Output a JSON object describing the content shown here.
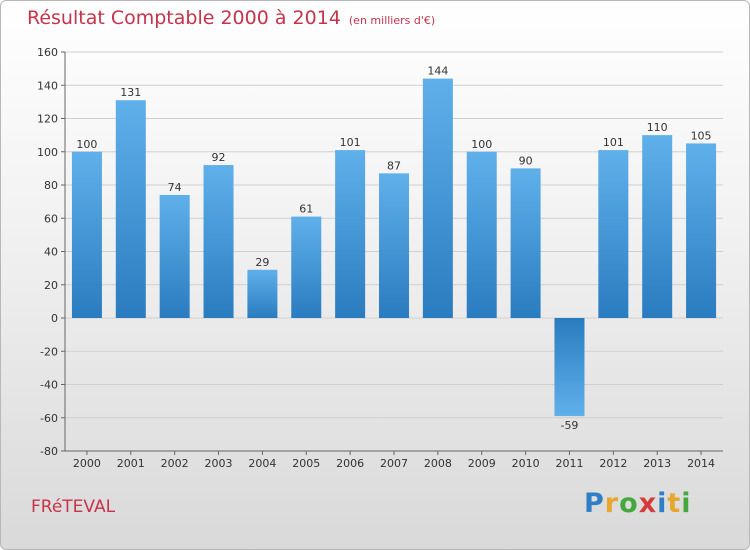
{
  "chart_data": {
    "type": "bar",
    "title": "Résultat Comptable 2000 à 2014",
    "subtitle": "(en milliers d'€)",
    "categories": [
      "2000",
      "2001",
      "2002",
      "2003",
      "2004",
      "2005",
      "2006",
      "2007",
      "2008",
      "2009",
      "2010",
      "2011",
      "2012",
      "2013",
      "2014"
    ],
    "values": [
      100,
      131,
      74,
      92,
      29,
      61,
      101,
      87,
      144,
      100,
      90,
      -59,
      101,
      110,
      105
    ],
    "ylim": [
      -80,
      160
    ],
    "yticks": [
      -80,
      -60,
      -40,
      -20,
      0,
      20,
      40,
      60,
      80,
      100,
      120,
      140,
      160
    ],
    "xlabel": "",
    "ylabel": "",
    "grid": true
  },
  "commune": "FRéTEVAL",
  "logo": {
    "letters": [
      "P",
      "r",
      "o",
      "x",
      "i",
      "t",
      "i"
    ],
    "colors": [
      "#2e7fc4",
      "#e8a62a",
      "#45a83c",
      "#d83a3a",
      "#2e7fc4",
      "#e8a62a",
      "#45a83c"
    ]
  },
  "colors": {
    "title": "#c8324a",
    "bar_light": "#5fb0ea",
    "bar_dark": "#2a7cc0",
    "grid": "#cfcfcf",
    "axis_text": "#333333"
  }
}
